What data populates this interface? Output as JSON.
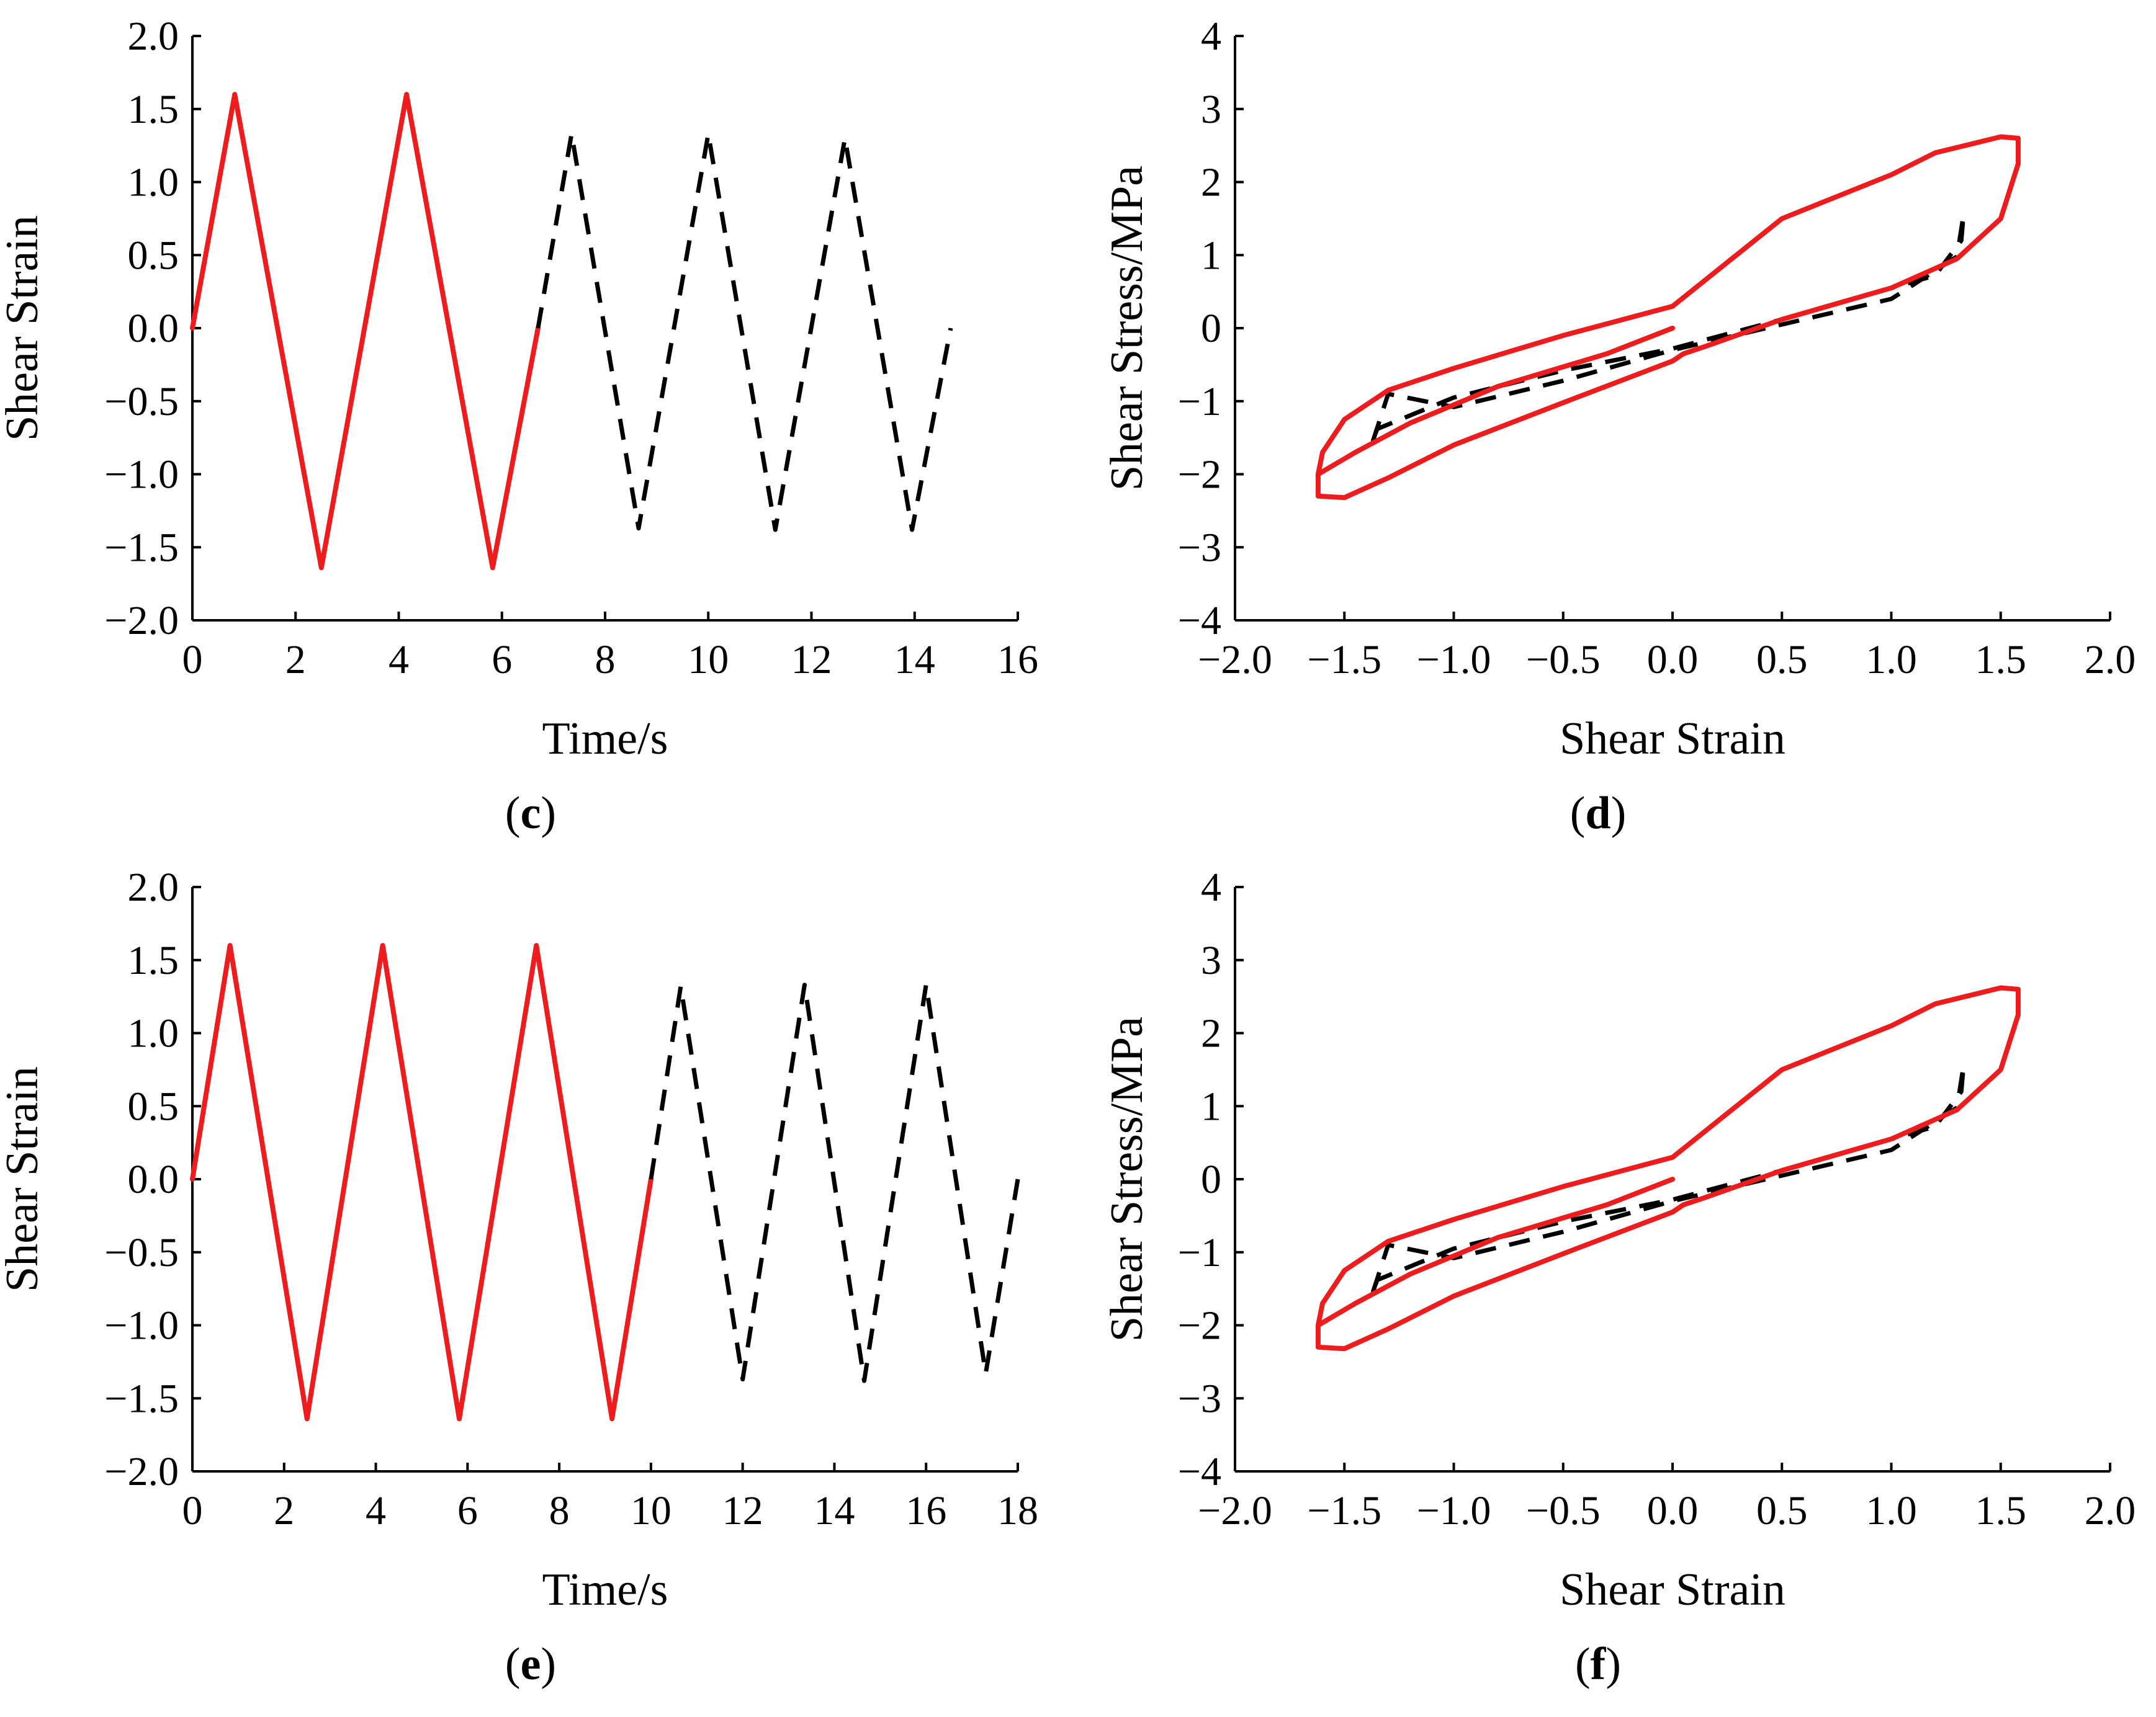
{
  "colors": {
    "solid_series": "#ee1c1c",
    "dashed_series": "#000000",
    "axis": "#000000"
  },
  "chart_data": [
    {
      "id": "c",
      "caption_letter": "c",
      "type": "line",
      "xlabel": "Time/s",
      "ylabel": "Shear Strain",
      "xlim": [
        0,
        16
      ],
      "ylim": [
        -2.0,
        2.0
      ],
      "x_ticks": [
        "0",
        "2",
        "4",
        "6",
        "8",
        "10",
        "12",
        "14",
        "16"
      ],
      "y_ticks": [
        "−2.0",
        "−1.5",
        "−1.0",
        "−0.5",
        "0.0",
        "0.5",
        "1.0",
        "1.5",
        "2.0"
      ],
      "series": [
        {
          "name": "solid",
          "style": "solid",
          "x": [
            0,
            0.82,
            2.5,
            4.15,
            5.82,
            6.7
          ],
          "y": [
            0,
            1.6,
            -1.64,
            1.6,
            -1.64,
            0
          ]
        },
        {
          "name": "dashed",
          "style": "dashed",
          "x": [
            6.7,
            7.35,
            8.65,
            10.0,
            11.3,
            12.65,
            13.95,
            14.7
          ],
          "y": [
            0,
            1.33,
            -1.37,
            1.33,
            -1.38,
            1.3,
            -1.38,
            0
          ]
        }
      ]
    },
    {
      "id": "d",
      "caption_letter": "d",
      "type": "line",
      "xlabel": "Shear Strain",
      "ylabel": "Shear Stress/MPa",
      "xlim": [
        -2.0,
        2.0
      ],
      "ylim": [
        -4,
        4
      ],
      "x_ticks": [
        "−2.0",
        "−1.5",
        "−1.0",
        "−0.5",
        "0.0",
        "0.5",
        "1.0",
        "1.5",
        "2.0"
      ],
      "y_ticks": [
        "−4",
        "−3",
        "−2",
        "−1",
        "0",
        "1",
        "2",
        "3",
        "4"
      ],
      "series": [
        {
          "name": "dashed-loop",
          "style": "dashed",
          "x": [
            -1.37,
            -1.3,
            -1.0,
            -0.5,
            0.0,
            0.5,
            1.0,
            1.3,
            1.33,
            1.32,
            1.2,
            1.0,
            0.5,
            0.0,
            -0.5,
            -1.0,
            -1.35,
            -1.37
          ],
          "y": [
            -1.55,
            -0.9,
            -1.08,
            -0.72,
            -0.3,
            0.05,
            0.4,
            0.98,
            1.55,
            1.2,
            0.72,
            0.55,
            0.12,
            -0.28,
            -0.58,
            -0.95,
            -1.38,
            -1.55
          ]
        },
        {
          "name": "solid-loop",
          "style": "solid",
          "x": [
            0.0,
            -0.3,
            -0.8,
            -1.2,
            -1.45,
            -1.62,
            -1.62,
            -1.5,
            -1.3,
            -1.0,
            -0.5,
            0.0,
            0.05,
            0.1,
            0.15,
            0.5,
            1.0,
            1.3,
            1.5,
            1.58,
            1.58,
            1.5,
            1.2,
            1.0,
            0.5,
            0.0,
            -0.5,
            -1.0,
            -1.3,
            -1.5,
            -1.6,
            -1.62
          ],
          "y": [
            0.0,
            -0.35,
            -0.8,
            -1.3,
            -1.7,
            -2.0,
            -2.3,
            -2.32,
            -2.05,
            -1.6,
            -1.02,
            -0.45,
            -0.35,
            -0.3,
            -0.25,
            0.12,
            0.55,
            0.95,
            1.5,
            2.25,
            2.6,
            2.62,
            2.4,
            2.1,
            1.5,
            0.3,
            -0.1,
            -0.55,
            -0.85,
            -1.25,
            -1.7,
            -2.0
          ]
        }
      ]
    },
    {
      "id": "e",
      "caption_letter": "e",
      "type": "line",
      "xlabel": "Time/s",
      "ylabel": "Shear Strain",
      "xlim": [
        0,
        18
      ],
      "ylim": [
        -2.0,
        2.0
      ],
      "x_ticks": [
        "0",
        "2",
        "4",
        "6",
        "8",
        "10",
        "12",
        "14",
        "16",
        "18"
      ],
      "y_ticks": [
        "−2.0",
        "−1.5",
        "−1.0",
        "−0.5",
        "0.0",
        "0.5",
        "1.0",
        "1.5",
        "2.0"
      ],
      "series": [
        {
          "name": "solid",
          "style": "solid",
          "x": [
            0,
            0.82,
            2.5,
            4.15,
            5.82,
            7.5,
            9.15,
            10.0
          ],
          "y": [
            0,
            1.6,
            -1.64,
            1.6,
            -1.64,
            1.6,
            -1.64,
            0
          ]
        },
        {
          "name": "dashed",
          "style": "dashed",
          "x": [
            10.0,
            10.65,
            12.0,
            13.35,
            14.65,
            16.0,
            17.3,
            18.0
          ],
          "y": [
            0,
            1.32,
            -1.37,
            1.33,
            -1.38,
            1.33,
            -1.33,
            0
          ]
        }
      ]
    },
    {
      "id": "f",
      "caption_letter": "f",
      "type": "line",
      "xlabel": "Shear Strain",
      "ylabel": "Shear Stress/MPa",
      "xlim": [
        -2.0,
        2.0
      ],
      "ylim": [
        -4,
        4
      ],
      "x_ticks": [
        "−2.0",
        "−1.5",
        "−1.0",
        "−0.5",
        "0.0",
        "0.5",
        "1.0",
        "1.5",
        "2.0"
      ],
      "y_ticks": [
        "−4",
        "−3",
        "−2",
        "−1",
        "0",
        "1",
        "2",
        "3",
        "4"
      ],
      "series": [
        {
          "name": "dashed-loop",
          "style": "dashed",
          "x": [
            -1.37,
            -1.3,
            -1.0,
            -0.5,
            0.0,
            0.5,
            1.0,
            1.3,
            1.33,
            1.32,
            1.2,
            1.0,
            0.5,
            0.0,
            -0.5,
            -1.0,
            -1.35,
            -1.37
          ],
          "y": [
            -1.55,
            -0.9,
            -1.08,
            -0.72,
            -0.3,
            0.05,
            0.4,
            0.98,
            1.55,
            1.2,
            0.72,
            0.55,
            0.12,
            -0.28,
            -0.58,
            -0.95,
            -1.38,
            -1.55
          ]
        },
        {
          "name": "solid-loop",
          "style": "solid",
          "x": [
            0.0,
            -0.3,
            -0.8,
            -1.2,
            -1.45,
            -1.62,
            -1.62,
            -1.5,
            -1.3,
            -1.0,
            -0.5,
            0.0,
            0.05,
            0.1,
            0.15,
            0.5,
            1.0,
            1.3,
            1.5,
            1.58,
            1.58,
            1.5,
            1.2,
            1.0,
            0.5,
            0.0,
            -0.5,
            -1.0,
            -1.3,
            -1.5,
            -1.6,
            -1.62
          ],
          "y": [
            0.0,
            -0.35,
            -0.8,
            -1.3,
            -1.7,
            -2.0,
            -2.3,
            -2.32,
            -2.05,
            -1.6,
            -1.02,
            -0.45,
            -0.35,
            -0.3,
            -0.25,
            0.12,
            0.55,
            0.95,
            1.5,
            2.25,
            2.6,
            2.62,
            2.4,
            2.1,
            1.5,
            0.3,
            -0.1,
            -0.55,
            -0.85,
            -1.25,
            -1.7,
            -2.0
          ]
        }
      ]
    }
  ]
}
